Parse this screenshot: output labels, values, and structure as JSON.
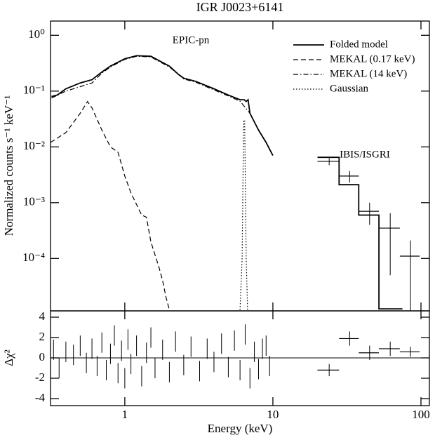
{
  "chart_data": [
    {
      "type": "line",
      "title": "IGR J0023+6141",
      "ylabel": "Normalized counts s⁻¹ keV⁻¹",
      "annotations": [
        "EPIC-pn",
        "IBIS/ISGRI"
      ],
      "xlog": true,
      "ylog": true,
      "xlim": [
        0.315,
        114
      ],
      "ylim": [
        1.15e-05,
        1.8
      ],
      "yticks": [
        {
          "value": 1,
          "label": "10⁰"
        },
        {
          "value": 0.1,
          "label": "10⁻¹"
        },
        {
          "value": 0.01,
          "label": "10⁻²"
        },
        {
          "value": 0.001,
          "label": "10⁻³"
        },
        {
          "value": 0.0001,
          "label": "10⁻⁴"
        }
      ],
      "legend": "upper right",
      "series": [
        {
          "name": "Folded model",
          "color": "#000000",
          "linestyle": "solid",
          "x": [
            0.32,
            0.35,
            0.4,
            0.5,
            0.6,
            0.7,
            0.8,
            1,
            1.2,
            1.5,
            2,
            2.3,
            2.5,
            3,
            4,
            5,
            6,
            6.4,
            6.6,
            6.8,
            7,
            8,
            9,
            10,
            15,
            20,
            28,
            28,
            38,
            38,
            52,
            52,
            75
          ],
          "values": [
            0.08,
            0.085,
            0.11,
            0.14,
            0.16,
            0.22,
            0.28,
            0.38,
            0.43,
            0.42,
            0.28,
            0.2,
            0.17,
            0.15,
            0.11,
            0.085,
            0.07,
            0.07,
            0.065,
            0.07,
            0.04,
            0.02,
            0.012,
            0.007,
            null,
            0.0065,
            0.0065,
            0.0021,
            0.0021,
            0.0006,
            0.0006,
            1.25e-05,
            1.25e-05
          ]
        },
        {
          "name": "MEKAL (0.17 keV)",
          "color": "#000000",
          "linestyle": "dashed",
          "x": [
            0.315,
            0.4,
            0.5,
            0.56,
            0.6,
            0.7,
            0.8,
            0.9,
            1.0,
            1.1,
            1.3,
            1.4,
            1.5,
            1.7,
            1.8,
            1.9,
            2.0
          ],
          "values": [
            0.012,
            0.018,
            0.04,
            0.065,
            0.05,
            0.02,
            0.01,
            0.008,
            0.003,
            0.0015,
            0.0006,
            0.00055,
            0.0002,
            7e-05,
            4e-05,
            2e-05,
            1.2e-05
          ]
        },
        {
          "name": "MEKAL (14 keV)",
          "color": "#000000",
          "linestyle": "dashdot",
          "x": [
            0.32,
            0.4,
            0.5,
            0.6,
            0.7,
            0.8,
            1,
            1.2,
            1.5,
            2,
            2.5,
            3,
            4,
            5,
            6,
            7,
            8,
            9,
            10
          ],
          "values": [
            0.075,
            0.1,
            0.12,
            0.14,
            0.21,
            0.27,
            0.37,
            0.42,
            0.41,
            0.27,
            0.165,
            0.145,
            0.105,
            0.082,
            0.066,
            0.04,
            0.02,
            0.012,
            0.007
          ]
        },
        {
          "name": "Gaussian",
          "color": "#000000",
          "linestyle": "dotted",
          "x": [
            6.0,
            6.2,
            6.35,
            6.45,
            6.6,
            6.75
          ],
          "values": [
            1.2e-05,
            0.0001,
            0.03,
            0.03,
            0.0001,
            1.2e-05
          ]
        }
      ],
      "points": {
        "x": [
          24,
          33,
          45,
          62,
          85
        ],
        "values": [
          0.0055,
          0.003,
          0.0007,
          0.00035,
          0.00011
        ],
        "x_errors": [
          4,
          5,
          7,
          10,
          13
        ],
        "errors": [
          0.0008,
          0.0007,
          0.0003,
          0.0003,
          0.0001
        ]
      }
    },
    {
      "type": "errorbar",
      "xlabel": "Energy (keV)",
      "ylabel": "Δχ²",
      "xlog": true,
      "xlim": [
        0.315,
        114
      ],
      "xticks": [
        1,
        10,
        100
      ],
      "ylim": [
        -4.69,
        4.62
      ],
      "yticks": [
        4,
        2,
        0,
        -2,
        -4
      ],
      "zero_line": true,
      "series": [
        {
          "x": [
            0.33,
            0.36,
            0.4,
            0.45,
            0.5,
            0.55,
            0.6,
            0.65,
            0.7,
            0.75,
            0.8,
            0.85,
            0.9,
            0.95,
            1.0,
            1.05,
            1.1,
            1.2,
            1.3,
            1.4,
            1.5,
            1.6,
            1.8,
            2.0,
            2.2,
            2.5,
            2.8,
            3.2,
            3.6,
            4.0,
            4.5,
            5.0,
            5.5,
            6.0,
            6.5,
            7.0,
            7.5,
            8.0,
            8.5,
            9.0,
            9.5
          ],
          "values": [
            0.8,
            -1.0,
            0.6,
            0.3,
            1.2,
            -0.5,
            0.9,
            -0.8,
            1.5,
            -1.2,
            0.4,
            2.2,
            -1.5,
            0.7,
            -2.0,
            1.8,
            -0.6,
            1.2,
            -1.8,
            0.5,
            2.0,
            -1.0,
            0.8,
            -1.4,
            1.6,
            -0.7,
            1.1,
            -1.3,
            0.9,
            -0.4,
            1.4,
            -0.9,
            1.7,
            -1.2,
            2.3,
            -2.0,
            0.6,
            -1.1,
            0.9,
            1.2,
            -0.8
          ],
          "errors": [
            1,
            1,
            1,
            1,
            1,
            1,
            1,
            1,
            1,
            1,
            1,
            1,
            1,
            1,
            1,
            1,
            1,
            1,
            1,
            1,
            1,
            1,
            1,
            1,
            1,
            1,
            1,
            1,
            1,
            1,
            1,
            1,
            1,
            1,
            1,
            1,
            1,
            1,
            1,
            1,
            1
          ]
        },
        {
          "x": [
            24,
            33,
            45,
            62,
            85
          ],
          "values": [
            -1.2,
            1.9,
            0.5,
            0.9,
            0.6
          ],
          "x_errors": [
            4,
            5,
            7,
            10,
            13
          ],
          "errors": [
            0.6,
            0.7,
            0.7,
            0.7,
            0.5
          ]
        }
      ]
    }
  ]
}
